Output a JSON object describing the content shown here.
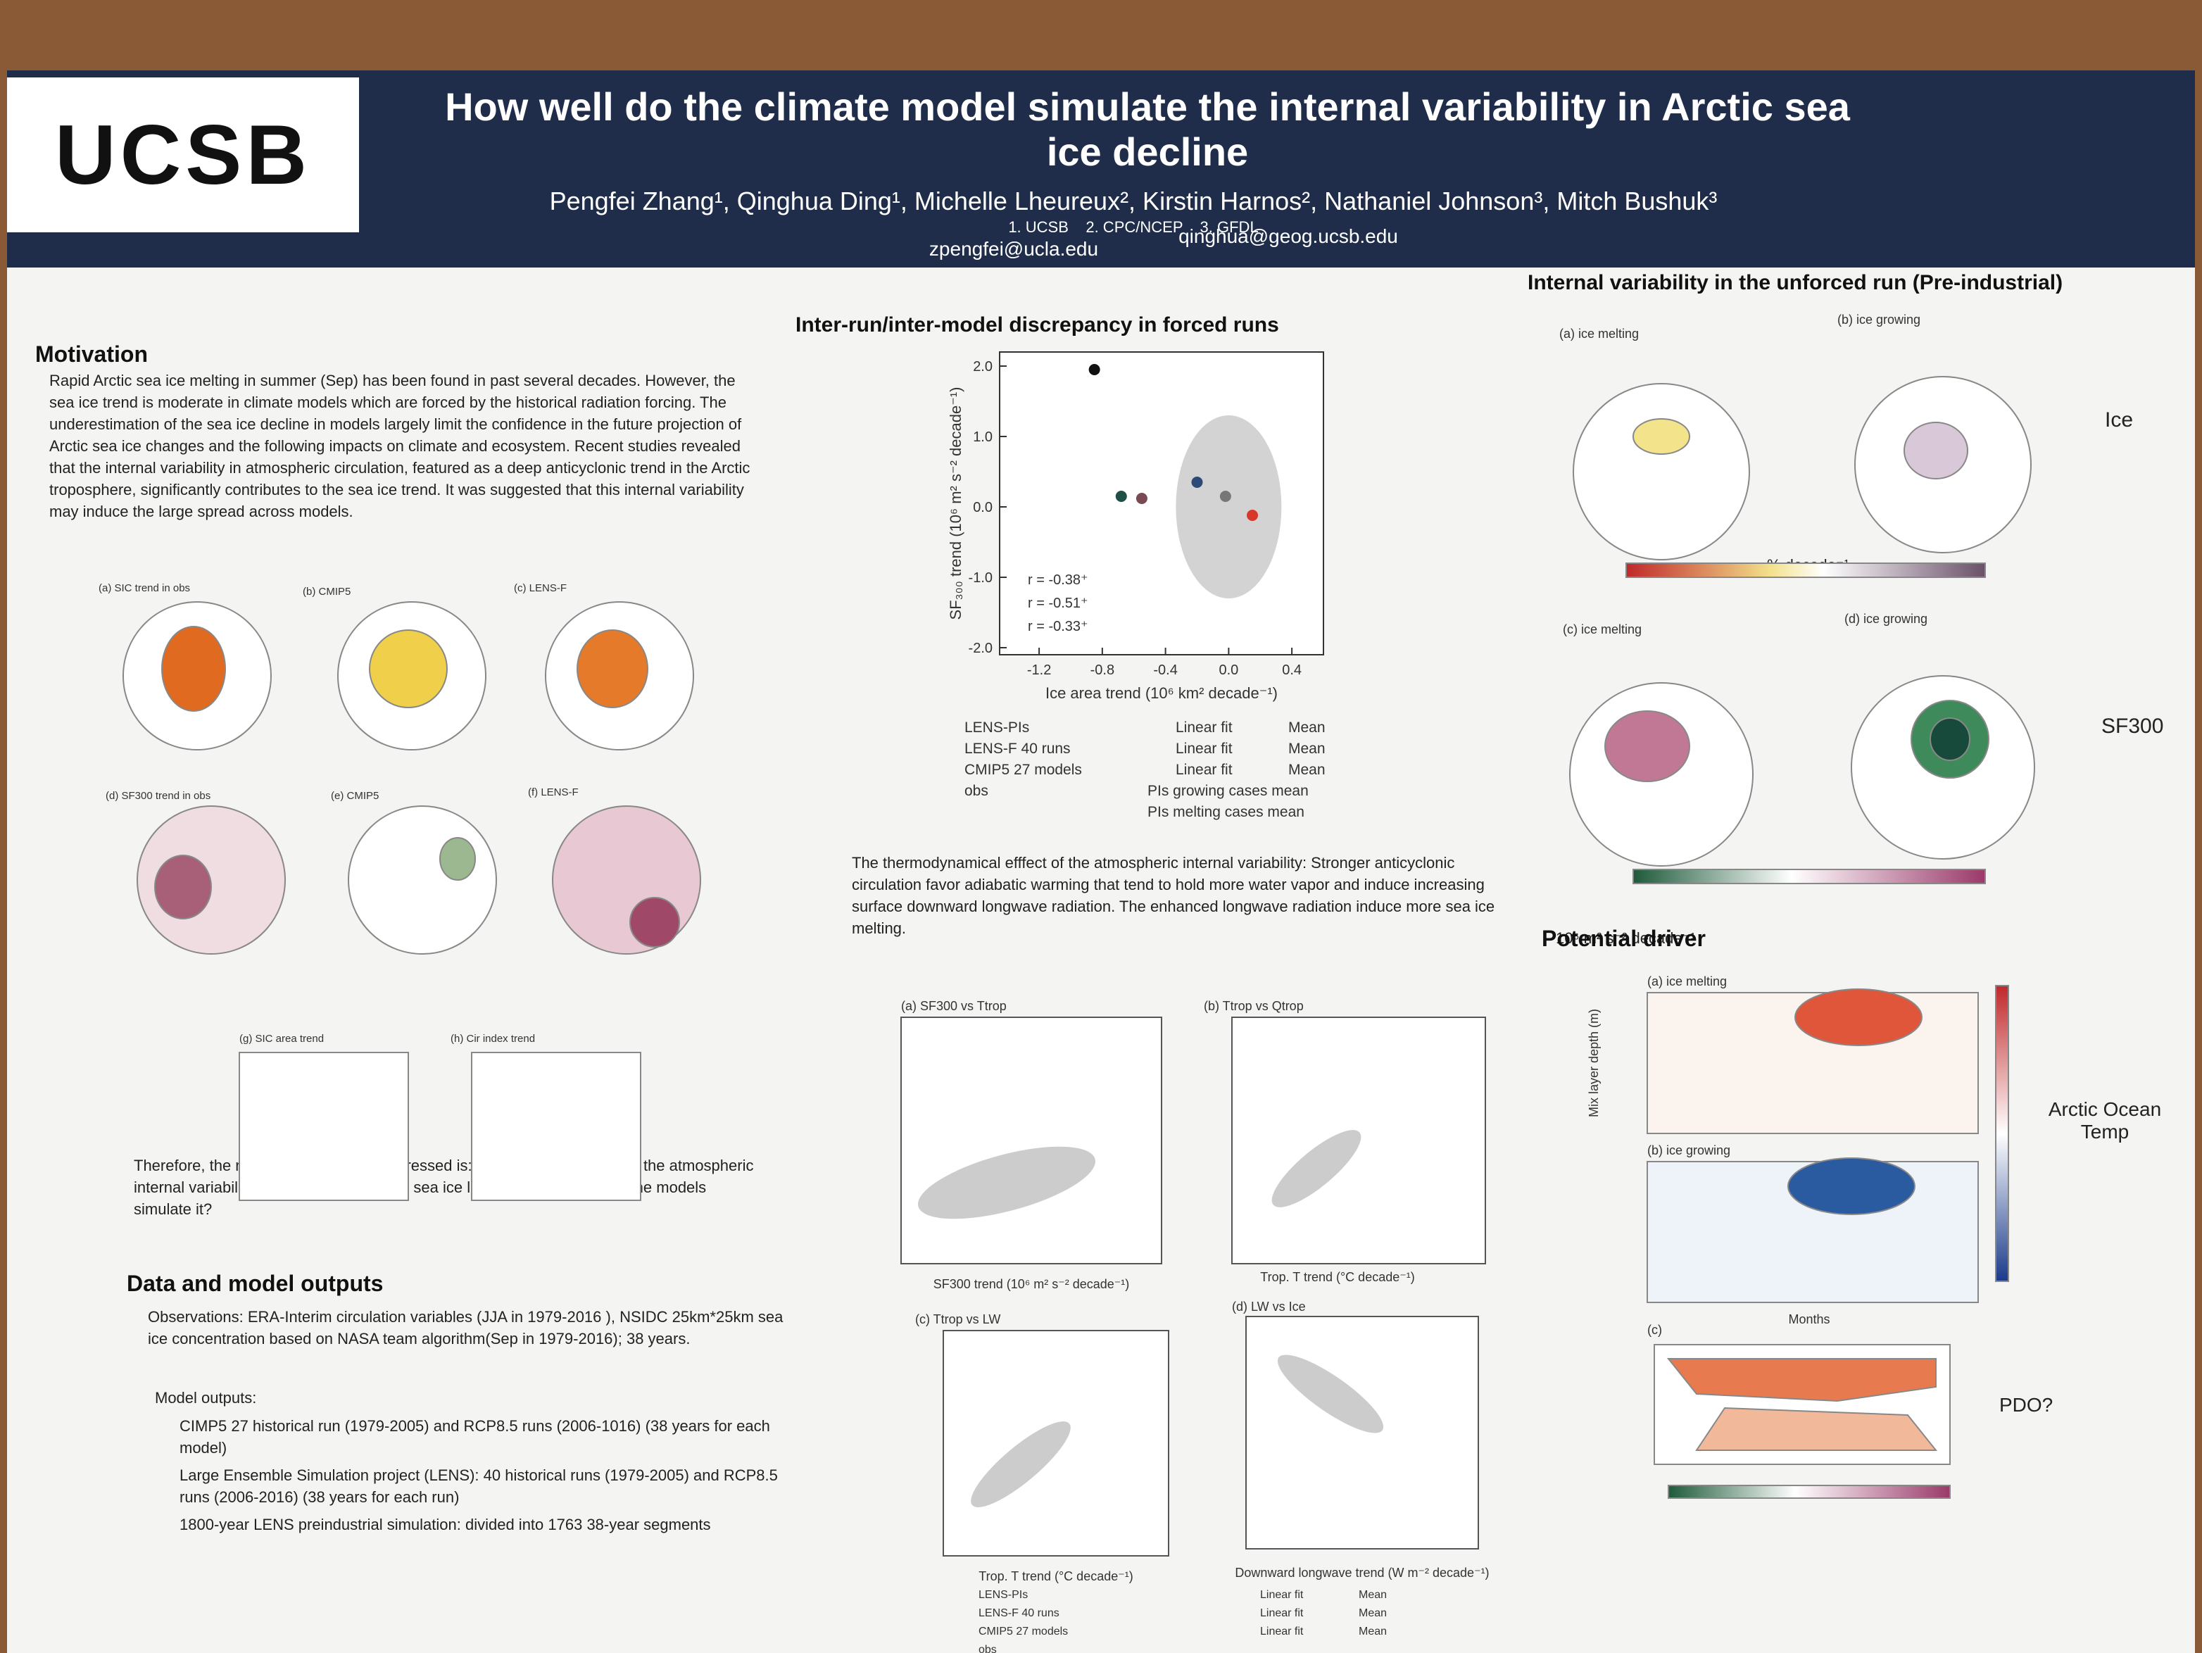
{
  "header": {
    "logo": "UCSB",
    "title": "How well do the climate model simulate the internal variability in Arctic sea ice decline",
    "authors": "Pengfei Zhang¹, Qinghua Ding¹, Michelle Lheureux², Kirstin Harnos², Nathaniel Johnson³, Mitch Bushuk³",
    "affiliations": "1. UCSB    2. CPC/NCEP    3. GFDL",
    "emails": [
      "zpengfei@ucla.edu",
      "qinghua@geog.ucsb.edu"
    ]
  },
  "motivation": {
    "heading": "Motivation",
    "text": "Rapid Arctic sea ice melting in summer (Sep) has been found in past several decades. However, the sea ice trend is moderate in climate models which are forced by the historical radiation forcing. The underestimation of the sea ice decline in models largely limit the confidence in the future projection of Arctic sea ice changes and the following impacts on climate and ecosystem. Recent studies revealed that the internal variability in atmospheric circulation, featured as a deep anticyclonic trend in the Arctic troposphere, significantly contributes to the sea ice trend. It was suggested that this internal variability may induce the large spread across models.",
    "panels": [
      "(a) SIC trend in obs",
      "(b) CMIP5",
      "(c) LENS-F",
      "(d) SF300 trend in obs",
      "(e) CMIP5",
      "(f) LENS-F",
      "(g) SIC area trend",
      "(h) Cir index trend"
    ],
    "question": "Therefore, the major question to be addressed is: Can the model simulate the atmospheric internal variability that induces the Arctic sea ice loss? If so, how well do the models simulate it?"
  },
  "data_outputs": {
    "heading": "Data and model outputs",
    "observations": "Observations: ERA-Interim circulation variables (JJA in 1979-2016 ), NSIDC 25km*25km sea ice concentration based on NASA team algorithm(Sep in 1979-2016); 38 years.",
    "model_outputs": "Model outputs:",
    "items": [
      "CIMP5 27 historical run (1979-2005) and RCP8.5 runs (2006-1016) (38 years for each model)",
      "Large Ensemble Simulation project (LENS): 40 historical runs (1979-2005) and RCP8.5 runs (2006-2016) (38 years for each run)",
      "1800-year LENS preindustrial simulation: divided into 1763 38-year segments"
    ]
  },
  "discrepancy": {
    "heading": "Inter-run/inter-model discrepancy in forced runs",
    "chart_data": {
      "type": "scatter",
      "x_label": "Ice area trend (10⁶ km² decade⁻¹)",
      "y_label": "SF₃₀₀ trend (10⁶ m² s⁻² decade⁻¹)",
      "xlim": [
        -1.45,
        0.6
      ],
      "ylim": [
        -2.1,
        2.2
      ],
      "xticks": [
        {
          "value": -1.2,
          "label": "-1.2"
        },
        {
          "value": -0.8,
          "label": "-0.8"
        },
        {
          "value": -0.4,
          "label": "-0.4"
        },
        {
          "value": 0,
          "label": "0.0"
        },
        {
          "value": 0.4,
          "label": "0.4"
        }
      ],
      "yticks": [
        {
          "value": -2,
          "label": "-2.0"
        },
        {
          "value": -1,
          "label": "-1.0"
        },
        {
          "value": 0,
          "label": "0.0"
        },
        {
          "value": 1,
          "label": "1.0"
        },
        {
          "value": 2,
          "label": "2.0"
        }
      ],
      "r_labels": [
        "r = -0.38⁺",
        "r = -0.51⁺",
        "r = -0.33⁺"
      ],
      "legend": [
        "LENS-PIs",
        "LENS-F 40 runs",
        "CMIP5 27 models",
        "obs",
        "Linear fit",
        "Linear fit",
        "Linear fit",
        "Mean",
        "Mean",
        "Mean",
        "PIs growing cases mean",
        "PIs melting cases mean"
      ],
      "points": {
        "x": [
          -0.85,
          -0.02,
          -0.68,
          -0.55,
          -0.2,
          0.15
        ],
        "y": [
          1.95,
          0.15,
          0.15,
          0.12,
          0.35,
          -0.12
        ],
        "colors": [
          "#111111",
          "#777777",
          "#1f4f46",
          "#7a4a52",
          "#2c4a78",
          "#d8372a"
        ]
      }
    },
    "thermo_text": "The thermodynamical efffect of the atmospheric internal variability: Stronger anticyclonic circulation favor adiabatic warming that tend to hold more water vapor and induce increasing surface downward longwave radiation. The enhanced longwave radiation induce more sea ice melting.",
    "panels": [
      "(a) SF300 vs Ttrop",
      "(b) Ttrop vs Qtrop",
      "(c) Ttrop vs LW",
      "(d) LW vs Ice"
    ],
    "panel_x_labels": [
      "SF300 trend (10⁶ m² s⁻² decade⁻¹)",
      "Trop. T trend (°C decade⁻¹)",
      "Trop. T trend (°C decade⁻¹)",
      "Downward longwave trend (W m⁻² decade⁻¹)"
    ],
    "panel_legend": [
      "LENS-PIs",
      "LENS-F 40 runs",
      "CMIP5 27 models",
      "obs",
      "Linear fit",
      "Linear fit",
      "Linear fit",
      "Mean",
      "Mean",
      "Mean"
    ]
  },
  "internal": {
    "heading": "Internal variability in the unforced run (Pre-industrial)",
    "panels": [
      "(a) ice melting",
      "(b) ice growing",
      "(c) ice melting",
      "(d) ice growing"
    ],
    "row_labels": [
      "Ice",
      "SF300"
    ],
    "colorbar_units": [
      "% decade⁻¹",
      "10⁶ m² s⁻² decade⁻¹"
    ]
  },
  "driver": {
    "heading": "Potential driver",
    "panels": [
      "(a) ice melting",
      "(b) ice growing",
      "(c)"
    ],
    "y_label": "Mix layer depth (m)",
    "x_label": "Months",
    "label_temp": "Arctic Ocean Temp",
    "label_pdo": "PDO?"
  }
}
